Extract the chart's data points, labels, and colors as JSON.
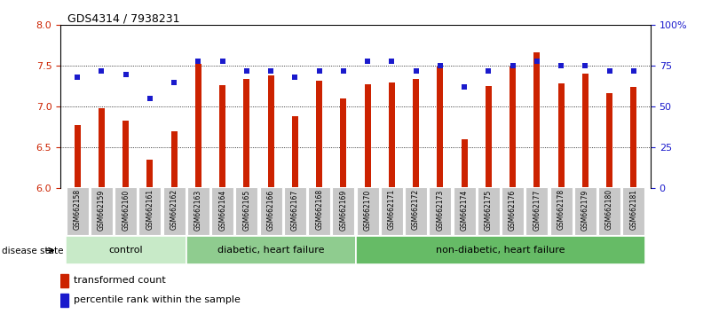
{
  "title": "GDS4314 / 7938231",
  "samples": [
    "GSM662158",
    "GSM662159",
    "GSM662160",
    "GSM662161",
    "GSM662162",
    "GSM662163",
    "GSM662164",
    "GSM662165",
    "GSM662166",
    "GSM662167",
    "GSM662168",
    "GSM662169",
    "GSM662170",
    "GSM662171",
    "GSM662172",
    "GSM662173",
    "GSM662174",
    "GSM662175",
    "GSM662176",
    "GSM662177",
    "GSM662178",
    "GSM662179",
    "GSM662180",
    "GSM662181"
  ],
  "bar_values": [
    6.78,
    6.98,
    6.83,
    6.35,
    6.7,
    7.52,
    7.27,
    7.34,
    7.38,
    6.88,
    7.32,
    7.1,
    7.28,
    7.3,
    7.34,
    7.49,
    6.6,
    7.25,
    7.49,
    7.67,
    7.29,
    7.41,
    7.17,
    7.24
  ],
  "percentile_values": [
    68,
    72,
    70,
    55,
    65,
    78,
    78,
    72,
    72,
    68,
    72,
    72,
    78,
    78,
    72,
    75,
    62,
    72,
    75,
    78,
    75,
    75,
    72,
    72
  ],
  "ylim_left": [
    6.0,
    8.0
  ],
  "ylim_right": [
    0,
    100
  ],
  "yticks_left": [
    6.0,
    6.5,
    7.0,
    7.5,
    8.0
  ],
  "yticks_right": [
    0,
    25,
    50,
    75,
    100
  ],
  "ytick_labels_right": [
    "0",
    "25",
    "50",
    "75",
    "100%"
  ],
  "bar_color": "#cc2200",
  "dot_color": "#1a1acc",
  "bar_bottom": 6.0,
  "groups": [
    {
      "label": "control",
      "start": 0,
      "end": 5,
      "color": "#c8eac8"
    },
    {
      "label": "diabetic, heart failure",
      "start": 5,
      "end": 12,
      "color": "#8fcc8f"
    },
    {
      "label": "non-diabetic, heart failure",
      "start": 12,
      "end": 24,
      "color": "#66bb66"
    }
  ],
  "legend_bar_label": "transformed count",
  "legend_dot_label": "percentile rank within the sample",
  "disease_state_label": "disease state",
  "background_color": "#ffffff",
  "tick_bg_color": "#c8c8c8",
  "grid_lines": [
    6.5,
    7.0,
    7.5
  ],
  "bar_width": 0.25
}
